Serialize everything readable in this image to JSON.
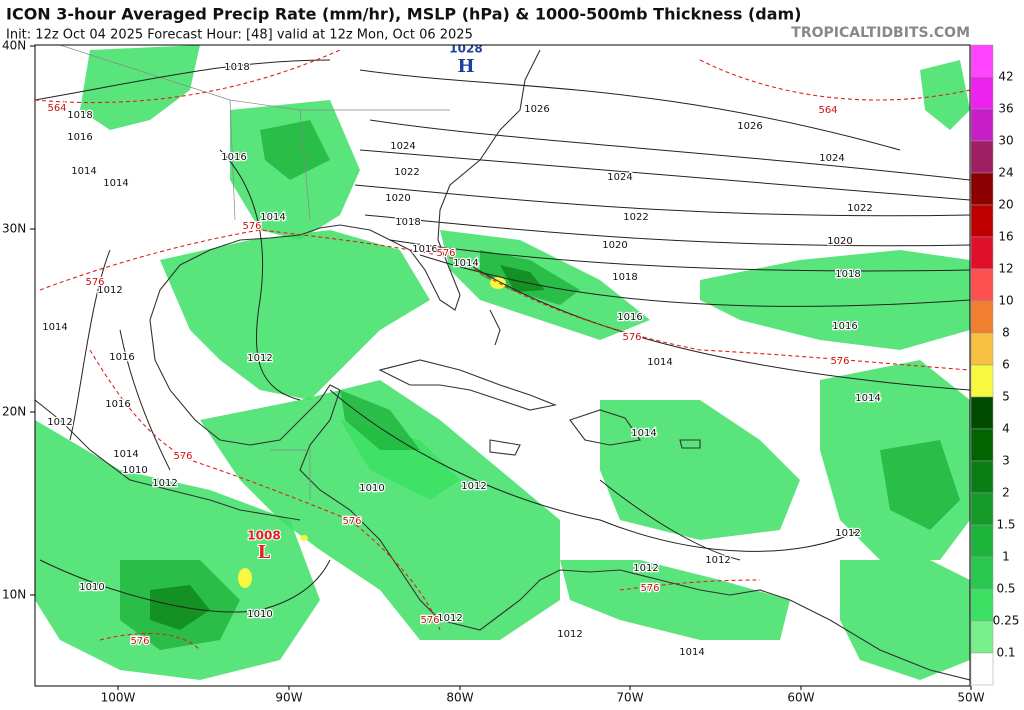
{
  "header": {
    "title": "ICON 3-hour Averaged Precip Rate (mm/hr), MSLP (hPa) & 1000-500mb Thickness (dam)",
    "init": "Init: 12z Oct 04 2025   Forecast Hour: [48]   valid at 12z Mon, Oct 06 2025",
    "source": "TROPICALTIDBITS.COM"
  },
  "axes": {
    "lat_labels": [
      "40N",
      "30N",
      "20N",
      "10N"
    ],
    "lon_labels": [
      "100W",
      "90W",
      "80W",
      "70W",
      "60W",
      "50W"
    ]
  },
  "colorbar": {
    "labels": [
      42,
      36,
      30,
      24,
      20,
      16,
      12,
      10,
      8,
      6,
      5,
      4,
      3,
      2,
      1.5,
      1,
      0.5,
      0.25,
      0.1
    ],
    "colors": [
      "#ff44ff",
      "#ee22ee",
      "#c81ec8",
      "#a01e64",
      "#8b0000",
      "#c00000",
      "#e0102a",
      "#ff5050",
      "#f08030",
      "#f8c040",
      "#f8f840",
      "#004b00",
      "#006400",
      "#0a7d14",
      "#139a28",
      "#1eb43c",
      "#28c850",
      "#3ce164",
      "#78f08c",
      "#ffffff"
    ]
  },
  "pressure_centers": [
    {
      "letter": "H",
      "value": "1028"
    },
    {
      "letter": "L",
      "value": "1008"
    }
  ],
  "isobar_labels": [
    "1018",
    "1018",
    "1016",
    "1014",
    "1014",
    "1016",
    "1014",
    "1024",
    "1022",
    "1020",
    "1018",
    "1016",
    "1014",
    "1026",
    "1026",
    "1024",
    "1022",
    "1020",
    "1018",
    "1016",
    "1014",
    "1024",
    "1022",
    "1020",
    "1018",
    "1016",
    "1014",
    "1012",
    "1012",
    "1010",
    "1012",
    "1014",
    "1016",
    "1016",
    "1012",
    "1014",
    "1010",
    "1012",
    "1010",
    "1010",
    "1014",
    "1012",
    "1012",
    "1012",
    "1012",
    "1012",
    "1014"
  ],
  "thickness_labels": [
    "564",
    "564",
    "576",
    "576",
    "576",
    "576",
    "576",
    "576",
    "576",
    "576",
    "576",
    "576"
  ]
}
